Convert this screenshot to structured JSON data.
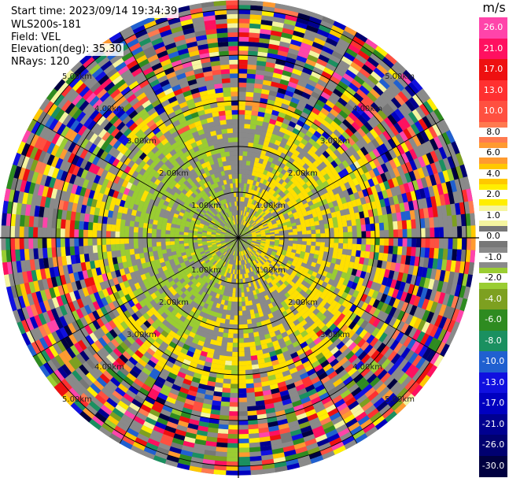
{
  "header": {
    "start_time": "Start time: 2023/09/14 19:34:39",
    "instrument": "WLS200s-181",
    "field": "Field: VEL",
    "elevation": "Elevation(deg): 35.30",
    "nrays": "NRays: 120"
  },
  "chart_data": {
    "type": "heatmap",
    "projection": "polar-ppi",
    "field": "VEL",
    "units": "m/s",
    "elevation_deg": 35.3,
    "n_rays": 120,
    "range_rings_km": [
      1.0,
      2.0,
      3.0,
      4.0,
      5.0
    ],
    "ring_labels": [
      "1.00km",
      "2.00km",
      "3.00km",
      "4.00km",
      "5.00km"
    ],
    "max_range_km": 5.2,
    "spokes_deg": [
      0,
      30,
      60,
      90,
      120,
      150,
      180,
      210,
      240,
      270,
      300,
      330
    ],
    "colorbar": {
      "unit": "m/s",
      "ticks": [
        "26.0",
        "21.0",
        "17.0",
        "13.0",
        "10.0",
        "8.0",
        "6.0",
        "4.0",
        "2.0",
        "1.0",
        "0.0",
        "-1.0",
        "-2.0",
        "-4.0",
        "-6.0",
        "-8.0",
        "-10.0",
        "-13.0",
        "-17.0",
        "-21.0",
        "-26.0",
        "-30.0"
      ],
      "colors": [
        "#ff44aa",
        "#ff1060",
        "#ee1010",
        "#ff3030",
        "#ff5040",
        "#ff7a50",
        "#ff9a30",
        "#ffc800",
        "#ffee00",
        "#f5f5a0",
        "#777777",
        "#8a8a8a",
        "#9acd32",
        "#7da020",
        "#2e8b20",
        "#1a9060",
        "#2060d0",
        "#1010e0",
        "#0000c0",
        "#000090",
        "#000070",
        "#000040"
      ]
    },
    "patterns": {
      "inner_gray": "#8a8a8a",
      "inner_yellow": "#ffe000",
      "inner_green": "#9acd32"
    }
  }
}
